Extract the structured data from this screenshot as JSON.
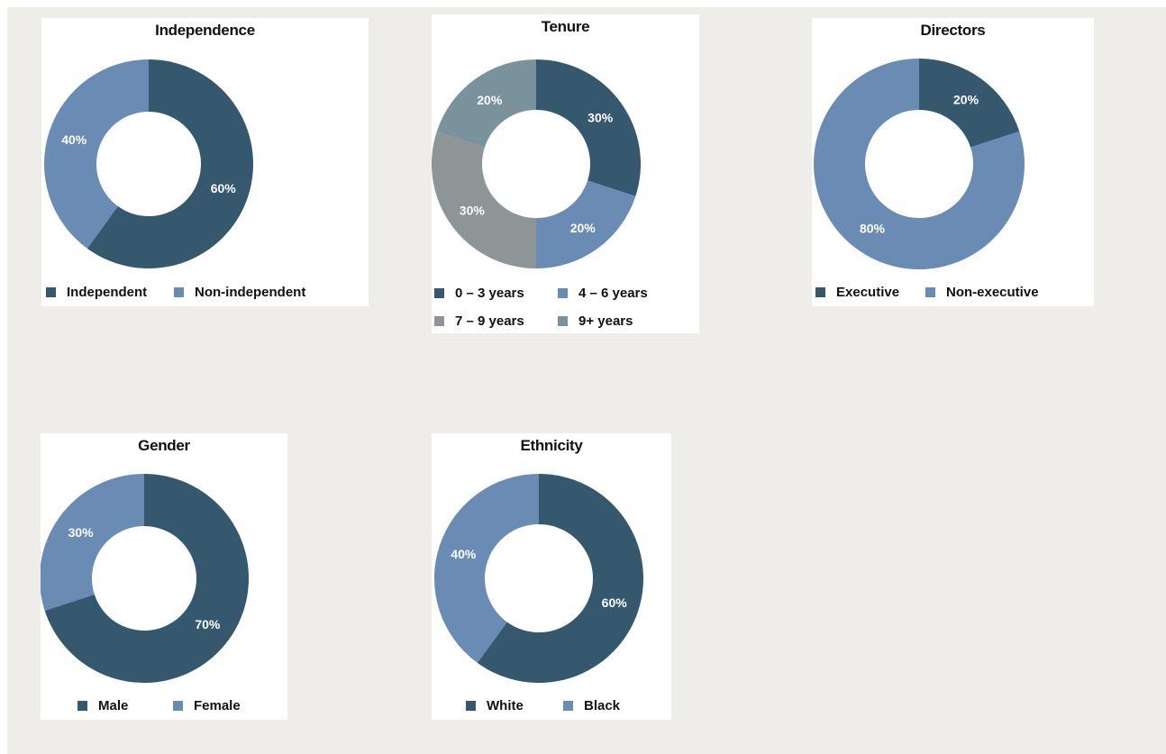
{
  "colors": {
    "dark_blue": "#36586f",
    "light_blue": "#6a8cb4",
    "gray": "#8e9597",
    "slate": "#7a929c",
    "background": "#eeede9"
  },
  "chart_data": [
    {
      "type": "pie",
      "title": "Independence",
      "categories": [
        "Independent",
        "Non-independent"
      ],
      "values": [
        60,
        40
      ],
      "labels": [
        "60%",
        "40%"
      ],
      "legend": "bottom"
    },
    {
      "type": "pie",
      "title": "Tenure",
      "categories": [
        "0 – 3 years",
        "4 – 6 years",
        "7 – 9 years",
        "9+ years"
      ],
      "values": [
        30,
        20,
        30,
        20
      ],
      "labels": [
        "30%",
        "20%",
        "30%",
        "20%"
      ],
      "legend": "bottom"
    },
    {
      "type": "pie",
      "title": "Directors",
      "categories": [
        "Executive",
        "Non-executive"
      ],
      "values": [
        20,
        80
      ],
      "labels": [
        "20%",
        "80%"
      ],
      "legend": "bottom"
    },
    {
      "type": "pie",
      "title": "Gender",
      "categories": [
        "Male",
        "Female"
      ],
      "values": [
        70,
        30
      ],
      "labels": [
        "70%",
        "30%"
      ],
      "legend": "bottom"
    },
    {
      "type": "pie",
      "title": "Ethnicity",
      "categories": [
        "White",
        "Black"
      ],
      "values": [
        60,
        40
      ],
      "labels": [
        "60%",
        "40%"
      ],
      "legend": "bottom"
    }
  ]
}
